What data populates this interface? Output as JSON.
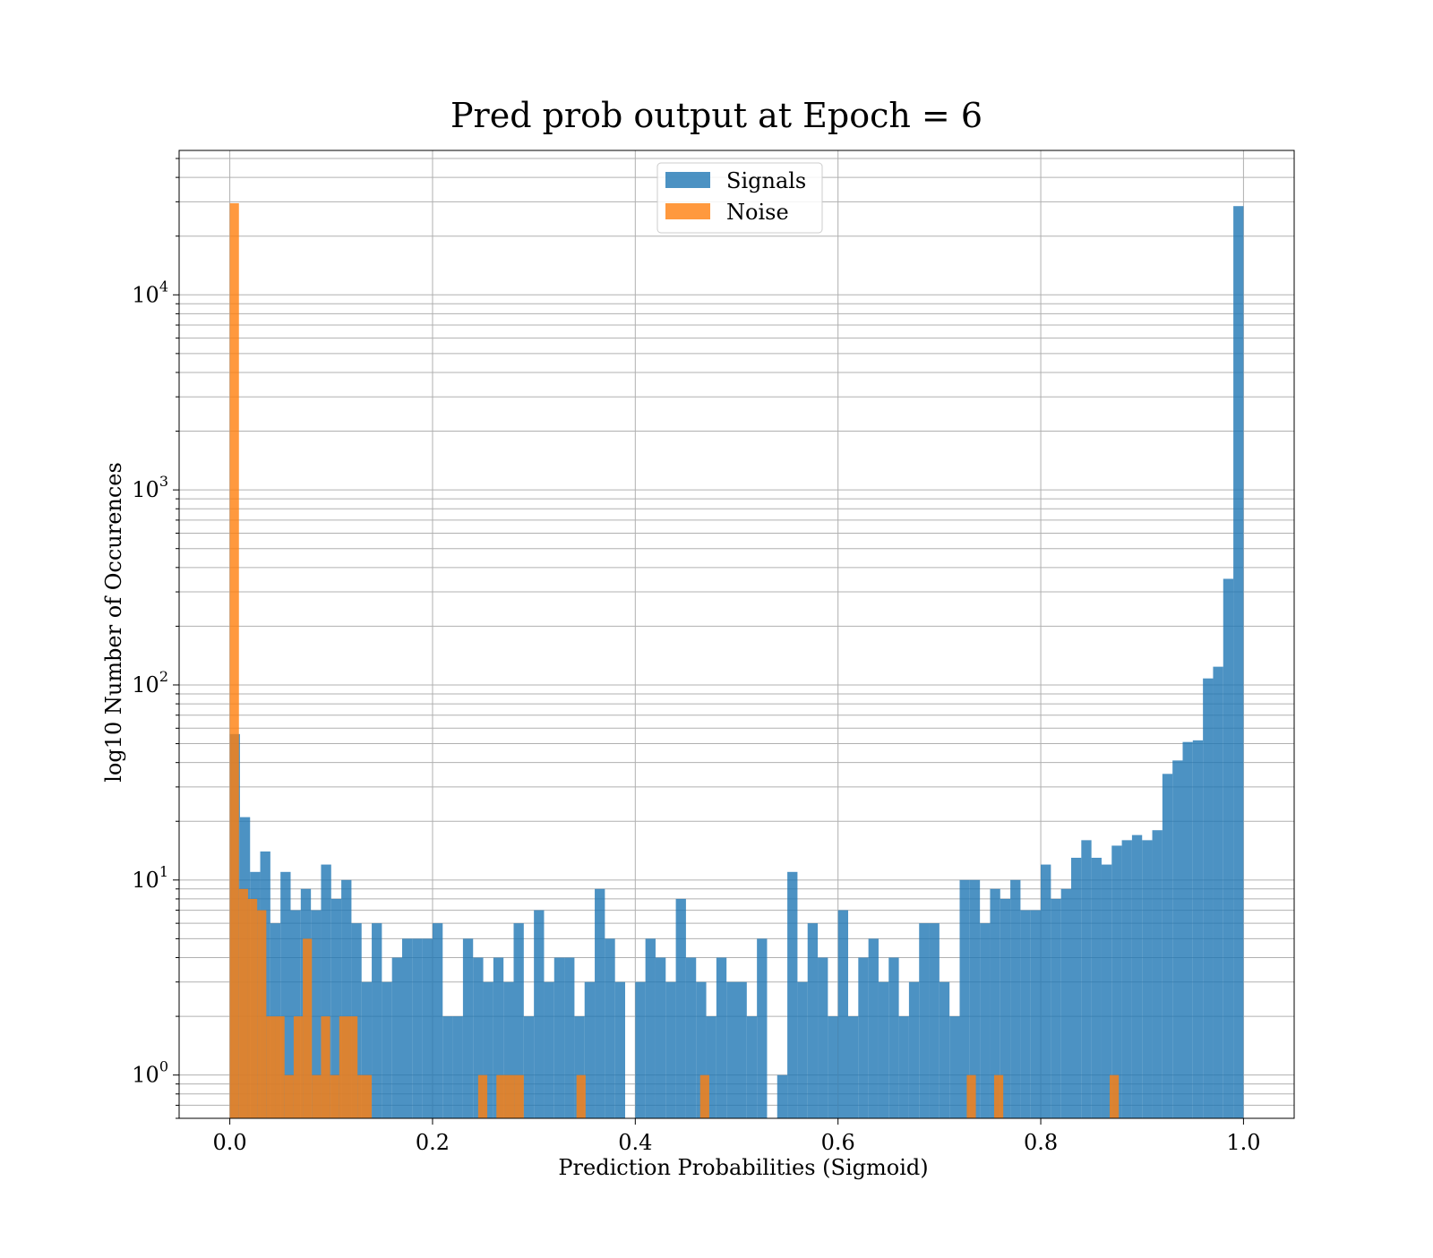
{
  "chart_data": {
    "type": "histogram",
    "title": "Pred prob output at Epoch = 6",
    "xlabel": "Prediction Probabilities (Sigmoid)",
    "ylabel": "log10 Number of Occurences",
    "xscale": "linear",
    "yscale": "log",
    "xlim": [
      -0.05,
      1.05
    ],
    "ylim": [
      0.6,
      55000
    ],
    "xticks": [
      0.0,
      0.2,
      0.4,
      0.6,
      0.8,
      1.0
    ],
    "xtick_labels": [
      "0.0",
      "0.2",
      "0.4",
      "0.6",
      "0.8",
      "1.0"
    ],
    "yticks": [
      1,
      10,
      100,
      1000,
      10000
    ],
    "ytick_labels": [
      {
        "base": "10",
        "exp": "0"
      },
      {
        "base": "10",
        "exp": "1"
      },
      {
        "base": "10",
        "exp": "2"
      },
      {
        "base": "10",
        "exp": "3"
      },
      {
        "base": "10",
        "exp": "4"
      }
    ],
    "grid": true,
    "legend_position": "top-center",
    "series": [
      {
        "name": "Signals",
        "color": "#1f77b4",
        "bins": [
          [
            0.0,
            0.01,
            56
          ],
          [
            0.01,
            0.02,
            21
          ],
          [
            0.02,
            0.03,
            11
          ],
          [
            0.03,
            0.04,
            14
          ],
          [
            0.04,
            0.05,
            6
          ],
          [
            0.05,
            0.06,
            11
          ],
          [
            0.06,
            0.07,
            7
          ],
          [
            0.07,
            0.08,
            9
          ],
          [
            0.08,
            0.09,
            7
          ],
          [
            0.09,
            0.1,
            12
          ],
          [
            0.1,
            0.11,
            8
          ],
          [
            0.11,
            0.12,
            10
          ],
          [
            0.12,
            0.13,
            6
          ],
          [
            0.13,
            0.14,
            3
          ],
          [
            0.14,
            0.15,
            6
          ],
          [
            0.15,
            0.16,
            3
          ],
          [
            0.16,
            0.17,
            4
          ],
          [
            0.17,
            0.18,
            5
          ],
          [
            0.18,
            0.19,
            5
          ],
          [
            0.19,
            0.2,
            5
          ],
          [
            0.2,
            0.21,
            6
          ],
          [
            0.21,
            0.22,
            2
          ],
          [
            0.22,
            0.23,
            2
          ],
          [
            0.23,
            0.24,
            5
          ],
          [
            0.24,
            0.25,
            4
          ],
          [
            0.25,
            0.26,
            3
          ],
          [
            0.26,
            0.27,
            4
          ],
          [
            0.27,
            0.28,
            3
          ],
          [
            0.28,
            0.29,
            6
          ],
          [
            0.29,
            0.3,
            2
          ],
          [
            0.3,
            0.31,
            7
          ],
          [
            0.31,
            0.32,
            3
          ],
          [
            0.32,
            0.33,
            4
          ],
          [
            0.33,
            0.34,
            4
          ],
          [
            0.34,
            0.35,
            2
          ],
          [
            0.35,
            0.36,
            3
          ],
          [
            0.36,
            0.37,
            9
          ],
          [
            0.37,
            0.38,
            5
          ],
          [
            0.38,
            0.39,
            3
          ],
          [
            0.4,
            0.41,
            3
          ],
          [
            0.41,
            0.42,
            5
          ],
          [
            0.42,
            0.43,
            4
          ],
          [
            0.43,
            0.44,
            3
          ],
          [
            0.44,
            0.45,
            8
          ],
          [
            0.45,
            0.46,
            4
          ],
          [
            0.46,
            0.47,
            3
          ],
          [
            0.47,
            0.48,
            2
          ],
          [
            0.48,
            0.49,
            4
          ],
          [
            0.49,
            0.5,
            3
          ],
          [
            0.5,
            0.51,
            3
          ],
          [
            0.51,
            0.52,
            2
          ],
          [
            0.52,
            0.53,
            5
          ],
          [
            0.54,
            0.55,
            1
          ],
          [
            0.55,
            0.56,
            11
          ],
          [
            0.56,
            0.57,
            3
          ],
          [
            0.57,
            0.58,
            6
          ],
          [
            0.58,
            0.59,
            4
          ],
          [
            0.59,
            0.6,
            2
          ],
          [
            0.6,
            0.61,
            7
          ],
          [
            0.61,
            0.62,
            2
          ],
          [
            0.62,
            0.63,
            4
          ],
          [
            0.63,
            0.64,
            5
          ],
          [
            0.64,
            0.65,
            3
          ],
          [
            0.65,
            0.66,
            4
          ],
          [
            0.66,
            0.67,
            2
          ],
          [
            0.67,
            0.68,
            3
          ],
          [
            0.68,
            0.69,
            6
          ],
          [
            0.69,
            0.7,
            6
          ],
          [
            0.7,
            0.71,
            3
          ],
          [
            0.71,
            0.72,
            2
          ],
          [
            0.72,
            0.73,
            10
          ],
          [
            0.73,
            0.74,
            10
          ],
          [
            0.74,
            0.75,
            6
          ],
          [
            0.75,
            0.76,
            9
          ],
          [
            0.76,
            0.77,
            8
          ],
          [
            0.77,
            0.78,
            10
          ],
          [
            0.78,
            0.79,
            7
          ],
          [
            0.79,
            0.8,
            7
          ],
          [
            0.8,
            0.81,
            12
          ],
          [
            0.81,
            0.82,
            8
          ],
          [
            0.82,
            0.83,
            9
          ],
          [
            0.83,
            0.84,
            13
          ],
          [
            0.84,
            0.85,
            16
          ],
          [
            0.85,
            0.86,
            13
          ],
          [
            0.86,
            0.87,
            12
          ],
          [
            0.87,
            0.88,
            15
          ],
          [
            0.88,
            0.89,
            16
          ],
          [
            0.89,
            0.9,
            17
          ],
          [
            0.9,
            0.91,
            16
          ],
          [
            0.91,
            0.92,
            18
          ],
          [
            0.92,
            0.93,
            35
          ],
          [
            0.93,
            0.94,
            41
          ],
          [
            0.94,
            0.95,
            51
          ],
          [
            0.95,
            0.96,
            52
          ],
          [
            0.96,
            0.97,
            108
          ],
          [
            0.97,
            0.98,
            124
          ],
          [
            0.98,
            0.99,
            350
          ],
          [
            0.99,
            1.0,
            28500
          ]
        ]
      },
      {
        "name": "Noise",
        "color": "#ff7f0e",
        "bins": [
          [
            0.0,
            0.009,
            29500
          ],
          [
            0.009,
            0.018,
            9
          ],
          [
            0.018,
            0.027,
            8
          ],
          [
            0.027,
            0.036,
            7
          ],
          [
            0.036,
            0.045,
            2
          ],
          [
            0.045,
            0.054,
            2
          ],
          [
            0.054,
            0.063,
            1
          ],
          [
            0.063,
            0.072,
            2
          ],
          [
            0.072,
            0.081,
            5
          ],
          [
            0.081,
            0.09,
            1
          ],
          [
            0.09,
            0.099,
            2
          ],
          [
            0.099,
            0.108,
            1
          ],
          [
            0.108,
            0.117,
            2
          ],
          [
            0.117,
            0.126,
            2
          ],
          [
            0.126,
            0.14,
            1
          ],
          [
            0.245,
            0.254,
            1
          ],
          [
            0.263,
            0.272,
            1
          ],
          [
            0.272,
            0.281,
            1
          ],
          [
            0.281,
            0.29,
            1
          ],
          [
            0.342,
            0.351,
            1
          ],
          [
            0.464,
            0.473,
            1
          ],
          [
            0.727,
            0.736,
            1
          ],
          [
            0.754,
            0.763,
            1
          ],
          [
            0.868,
            0.877,
            1
          ]
        ]
      }
    ]
  }
}
